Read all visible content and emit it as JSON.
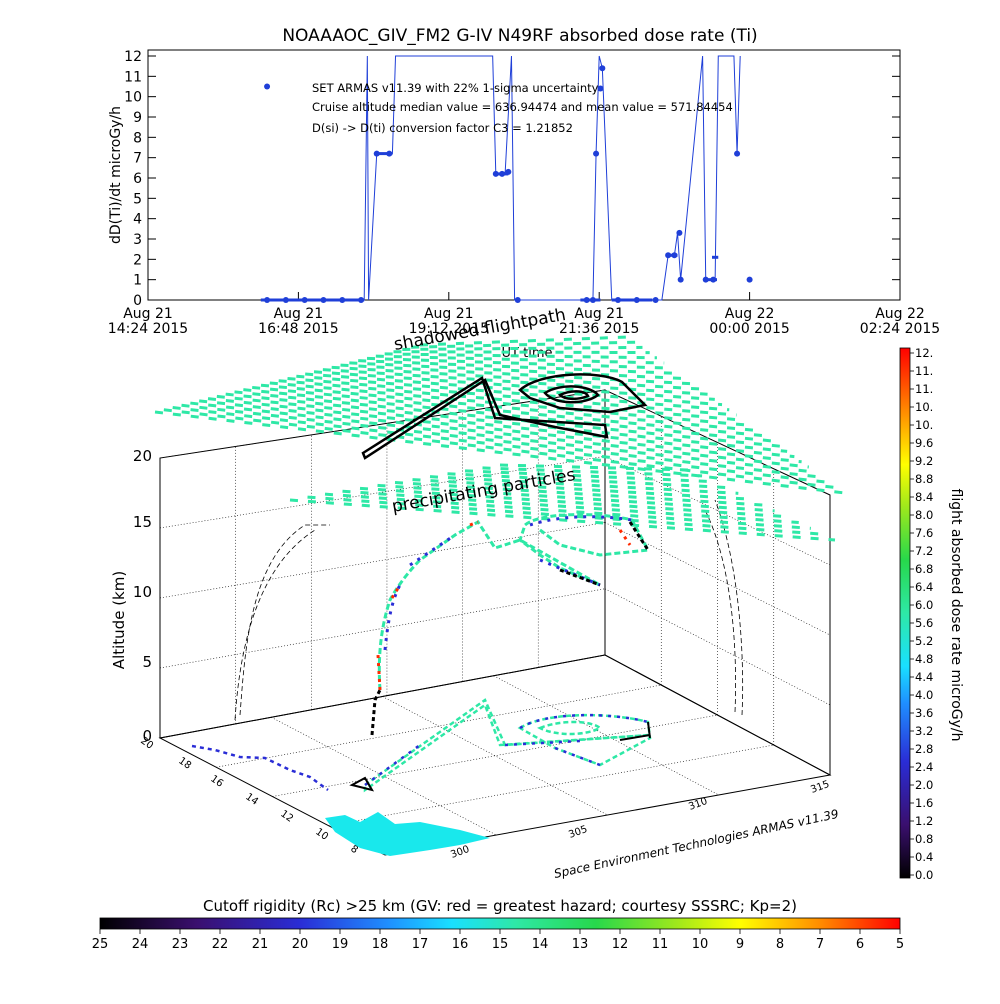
{
  "chart_data": [
    {
      "type": "line",
      "title": "NOAAAOC_GIV_FM2 G-IV    N49RF  absorbed dose rate (Ti)",
      "ylabel": "dD(Ti)/dt microGy/h",
      "xlabel": "UT time",
      "ylim": [
        0,
        12
      ],
      "y_ticks": [
        "0",
        "1",
        "2",
        "3",
        "4",
        "5",
        "6",
        "7",
        "8",
        "9",
        "10",
        "11",
        "12"
      ],
      "x_ticks": [
        {
          "l1": "Aug 21",
          "l2": "14:24 2015"
        },
        {
          "l1": "Aug 21",
          "l2": "16:48 2015"
        },
        {
          "l1": "Aug 21",
          "l2": "19:12 2015"
        },
        {
          "l1": "Aug 21",
          "l2": "21:36 2015"
        },
        {
          "l1": "Aug 22",
          "l2": "00:00 2015"
        },
        {
          "l1": "Aug 22",
          "l2": "02:24 2015"
        }
      ],
      "annotations": [
        "SET ARMAS v11.39 with 22% 1-sigma uncertainty",
        "Cruise altitude median value = 636.94474 and mean value = 571.84454",
        "D(si) -> D(ti) conversion factor C3 = 1.21852"
      ],
      "series": [
        {
          "color": "#1f3fd8",
          "x": [
            16.3,
            16.5,
            16.8,
            17.1,
            17.4,
            17.7,
            17.85,
            17.9,
            17.92,
            18.05,
            18.15,
            18.2,
            18.25,
            18.3,
            18.35,
            19.9,
            19.95,
            20.0,
            20.05,
            20.1,
            20.2,
            20.25,
            20.3,
            21.3,
            21.4,
            21.5,
            21.55,
            21.6,
            21.65,
            21.8,
            22.1,
            22.4,
            22.6,
            22.7,
            22.75,
            22.8,
            22.85,
            22.9,
            23.25,
            23.3,
            23.4,
            23.45,
            23.5,
            23.75,
            23.8,
            23.85
          ],
          "y": [
            0,
            0,
            0,
            0,
            0,
            0,
            0,
            12,
            0,
            7.2,
            7.2,
            7.2,
            7.2,
            7.2,
            12,
            12,
            6.2,
            6.2,
            6.2,
            6.3,
            12,
            0,
            0,
            0,
            0,
            0,
            7.2,
            12,
            11.4,
            0,
            0,
            0,
            0,
            2.2,
            2.2,
            2.2,
            3.3,
            1.0,
            12,
            1.0,
            1.0,
            1.0,
            12,
            12,
            7.2,
            12
          ],
          "points_x": [
            16.3,
            16.6,
            16.9,
            17.2,
            17.5,
            17.8,
            18.05,
            18.25,
            19.95,
            20.05,
            20.15,
            20.3,
            21.4,
            21.5,
            21.55,
            21.62,
            21.65,
            21.9,
            22.2,
            22.5,
            22.7,
            22.8,
            22.88,
            22.9,
            23.3,
            23.42,
            23.8,
            24.0
          ],
          "points_y": [
            0,
            0,
            0,
            0,
            0,
            0,
            7.2,
            7.2,
            6.2,
            6.2,
            6.3,
            0,
            0,
            0,
            7.2,
            10.4,
            11.4,
            0,
            0,
            0,
            2.2,
            2.2,
            3.3,
            1.0,
            1.0,
            1.0,
            7.2,
            1.0
          ]
        }
      ],
      "outlier": {
        "x": 16.3,
        "y": 10.5
      }
    },
    {
      "type": "scatter",
      "title": "",
      "zlabel": "Altitude (km)",
      "z_ticks": [
        "0",
        "5",
        "10",
        "15",
        "20"
      ],
      "lat_ticks": [
        "20",
        "18",
        "16",
        "14",
        "12",
        "10",
        "8"
      ],
      "lon_ticks": [
        "300",
        "305",
        "310",
        "315"
      ],
      "plane_labels": {
        "top": "shadowed flightpath",
        "mid": "precipitating particles"
      },
      "credit": "Space Environment Technologies ARMAS v11.39",
      "colorbar_dose": {
        "label": "flight absorbed dose rate microGy/h",
        "ticks": [
          "12.",
          "11.",
          "11.",
          "10.",
          "10.",
          "9.6",
          "9.2",
          "8.8",
          "8.4",
          "8.0",
          "7.6",
          "7.2",
          "6.8",
          "6.4",
          "6.0",
          "5.6",
          "5.2",
          "4.8",
          "4.4",
          "4.0",
          "3.6",
          "3.2",
          "2.8",
          "2.4",
          "2.0",
          "1.6",
          "1.2",
          "0.8",
          "0.4",
          "0.0"
        ]
      },
      "colorbar_rc": {
        "label": "Cutoff rigidity (Rc) >25 km (GV: red = greatest hazard; courtesy SSSRC; Kp=2)",
        "ticks": [
          "25",
          "24",
          "23",
          "22",
          "21",
          "20",
          "19",
          "18",
          "17",
          "16",
          "15",
          "14",
          "13",
          "12",
          "11",
          "10",
          "9",
          "8",
          "7",
          "6",
          "5"
        ]
      }
    }
  ]
}
